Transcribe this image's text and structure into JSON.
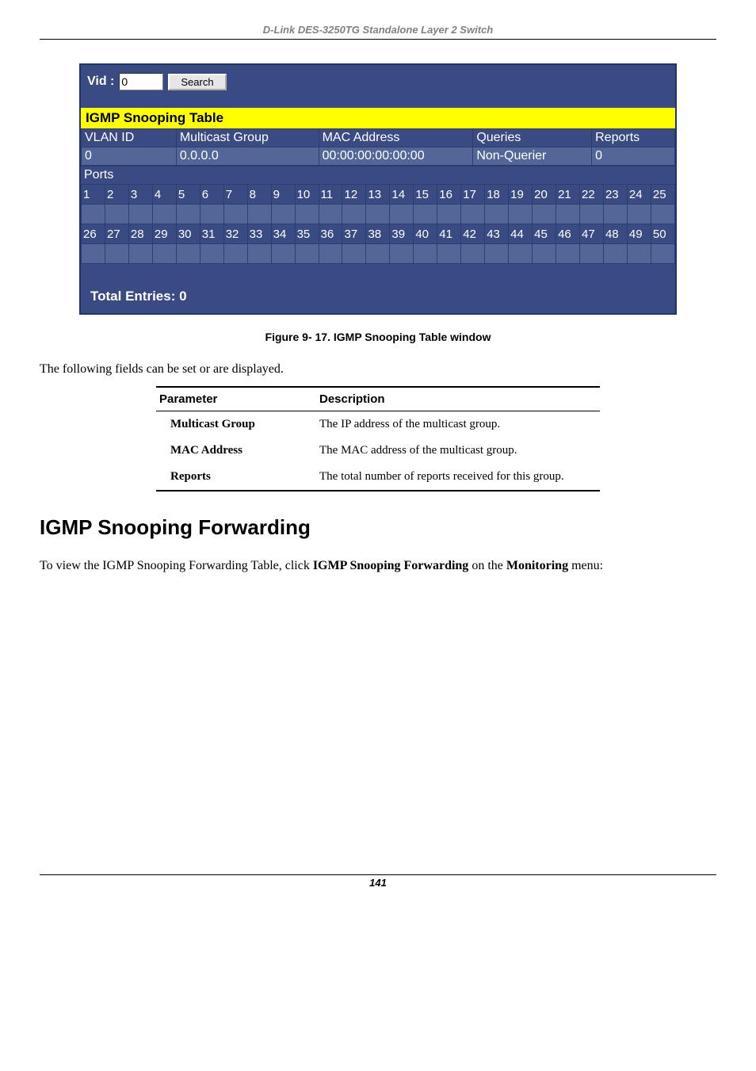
{
  "header": {
    "running": "D-Link DES-3250TG Standalone Layer 2 Switch",
    "page_num": "141"
  },
  "screenshot": {
    "vid_label": "Vid :",
    "vid_value": "0",
    "search_btn": "Search",
    "title": "IGMP Snooping Table",
    "cols": {
      "vlan": "VLAN ID",
      "mcast": "Multicast Group",
      "mac": "MAC Address",
      "queries": "Queries",
      "reports": "Reports"
    },
    "row": {
      "vlan": "0",
      "mcast": "0.0.0.0",
      "mac": "00:00:00:00:00:00",
      "queries": "Non-Querier",
      "reports": "0"
    },
    "ports_label": "Ports",
    "ports_top": [
      "1",
      "2",
      "3",
      "4",
      "5",
      "6",
      "7",
      "8",
      "9",
      "10",
      "11",
      "12",
      "13",
      "14",
      "15",
      "16",
      "17",
      "18",
      "19",
      "20",
      "21",
      "22",
      "23",
      "24",
      "25"
    ],
    "ports_bottom": [
      "26",
      "27",
      "28",
      "29",
      "30",
      "31",
      "32",
      "33",
      "34",
      "35",
      "36",
      "37",
      "38",
      "39",
      "40",
      "41",
      "42",
      "43",
      "44",
      "45",
      "46",
      "47",
      "48",
      "49",
      "50"
    ],
    "total": "Total Entries: 0",
    "colors": {
      "panel_bg": "#4d5f9e",
      "header_bg": "#3a4a82",
      "data_bg": "#536698",
      "border": "#2c3d72",
      "highlight": "#ffff00"
    }
  },
  "caption": "Figure 9- 17.  IGMP Snooping Table window",
  "lead_text": "The following fields can be set or are displayed.",
  "param_table": {
    "head": {
      "p": "Parameter",
      "d": "Description"
    },
    "rows": [
      {
        "p": "Multicast Group",
        "d": "The IP address of the multicast group."
      },
      {
        "p": "MAC Address",
        "d": "The MAC address of the multicast group."
      },
      {
        "p": "Reports",
        "d": "The total number of reports received for this group."
      }
    ]
  },
  "section_heading": "IGMP Snooping Forwarding",
  "section_body_parts": {
    "a": "To view the IGMP Snooping Forwarding Table, click ",
    "b": "IGMP Snooping Forwarding",
    "c": " on the ",
    "d": "Monitoring",
    "e": " menu:"
  }
}
